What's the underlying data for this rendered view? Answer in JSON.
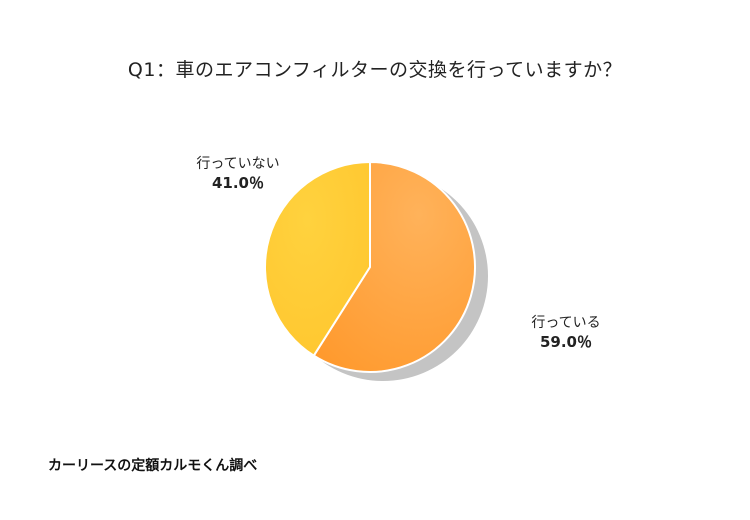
{
  "chart_data": {
    "type": "pie",
    "title": "Q1：車のエアコンフィルターの交換を行っていますか？",
    "series": [
      {
        "values": [
          59.0,
          41.0
        ],
        "categories": [
          "行っている",
          "行っていない"
        ]
      }
    ],
    "categories": [
      "行っている",
      "行っていない"
    ],
    "values": [
      59.0,
      41.0
    ],
    "value_labels": [
      "59.0％",
      "41.0％"
    ],
    "colors": [
      "#ff9f35",
      "#ffc933"
    ],
    "legend": "none",
    "grid": false
  },
  "labels": {
    "yes_name": "行っている",
    "yes_value": "59.0％",
    "not_name": "行っていない",
    "not_value": "41.0％"
  },
  "source": "カーリースの定額カルモくん調べ"
}
